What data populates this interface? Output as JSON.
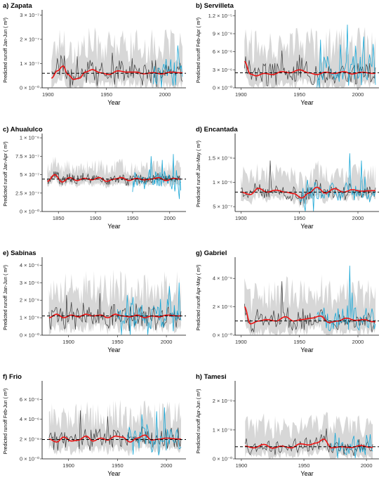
{
  "colors": {
    "band": "#c9c9c9",
    "predicted": "#3a3a3a",
    "observed": "#1aa7d6",
    "smooth": "#ee1111",
    "mean": "#000000"
  },
  "chart_data": [
    {
      "type": "line",
      "title": "a) Zapata",
      "xlabel": "Year",
      "ylabel": "Predicted runoff Jan-Jun ( m³)",
      "xlim": [
        1895,
        2018
      ],
      "xticks": [
        1900,
        1950,
        2000
      ],
      "xtick_labels": [
        "1900",
        "1950",
        "2000"
      ],
      "ylim": [
        0,
        3.1e-07
      ],
      "yticks": [
        0,
        1e-07,
        2e-07,
        3e-07
      ],
      "ytick_labels": [
        "0 × 10⁻⁰",
        "1 × 10⁻⁷",
        "2 × 10⁻⁷",
        "3 × 10⁻⁷"
      ],
      "mean": 6e-08,
      "series_years": [
        1903,
        2015
      ],
      "observed_years": [
        1990,
        2015
      ],
      "smooth_points": [
        [
          1903,
          4e-08
        ],
        [
          1908,
          7e-08
        ],
        [
          1913,
          9e-08
        ],
        [
          1917,
          5.5e-08
        ],
        [
          1922,
          3.5e-08
        ],
        [
          1927,
          4e-08
        ],
        [
          1932,
          6.5e-08
        ],
        [
          1938,
          7.5e-08
        ],
        [
          1945,
          6.2e-08
        ],
        [
          1952,
          5.5e-08
        ],
        [
          1960,
          7e-08
        ],
        [
          1967,
          6.5e-08
        ],
        [
          1975,
          6.5e-08
        ],
        [
          1982,
          5.8e-08
        ],
        [
          1990,
          6.3e-08
        ],
        [
          1997,
          5.7e-08
        ],
        [
          2005,
          6.5e-08
        ],
        [
          2013,
          6.2e-08
        ]
      ],
      "predicted_scale": 4.5e-08,
      "observed_scale": 5.5e-08,
      "band_scale": 9e-08,
      "spikes": [
        [
          2011,
          1.75e-07,
          "observed"
        ],
        [
          2008,
          1.05e-07,
          "observed"
        ],
        [
          1925,
          1.3e-07,
          "predicted"
        ],
        [
          1955,
          1.45e-07,
          "predicted"
        ]
      ]
    },
    {
      "type": "line",
      "title": "b) Servilleta",
      "xlabel": "Year",
      "ylabel": "Predicted runoff Feb-Apr ( m³)",
      "xlim": [
        1895,
        2018
      ],
      "xticks": [
        1900,
        1950,
        2000
      ],
      "xtick_labels": [
        "1900",
        "1950",
        "2000"
      ],
      "ylim": [
        0,
        1.25e-05
      ],
      "yticks": [
        0,
        3e-06,
        6e-06,
        9e-06,
        1.2e-05
      ],
      "ytick_labels": [
        "0 × 10⁻⁰",
        "3 × 10⁻⁶",
        "6 × 10⁻⁶",
        "9 × 10⁻⁶",
        "1.2 × 10⁻⁵"
      ],
      "mean": 2.5e-06,
      "series_years": [
        1903,
        2015
      ],
      "observed_years": [
        1965,
        2015
      ],
      "smooth_points": [
        [
          1903,
          4.4e-06
        ],
        [
          1908,
          2.3e-06
        ],
        [
          1913,
          2e-06
        ],
        [
          1920,
          2.4e-06
        ],
        [
          1927,
          2.2e-06
        ],
        [
          1935,
          2.7e-06
        ],
        [
          1942,
          2.5e-06
        ],
        [
          1950,
          3e-06
        ],
        [
          1958,
          2.5e-06
        ],
        [
          1965,
          2.2e-06
        ],
        [
          1972,
          2.6e-06
        ],
        [
          1980,
          2.4e-06
        ],
        [
          1988,
          2.7e-06
        ],
        [
          1995,
          2.3e-06
        ],
        [
          2003,
          2.6e-06
        ],
        [
          2013,
          2.4e-06
        ]
      ],
      "predicted_scale": 1.8e-06,
      "observed_scale": 2.6e-06,
      "band_scale": 3.8e-06,
      "spikes": [
        [
          1991,
          1.05e-05,
          "observed"
        ],
        [
          2005,
          8.5e-06,
          "observed"
        ],
        [
          1968,
          8e-06,
          "observed"
        ],
        [
          1985,
          7.2e-06,
          "observed"
        ],
        [
          1998,
          7e-06,
          "observed"
        ],
        [
          2013,
          7.3e-06,
          "observed"
        ],
        [
          1935,
          6.2e-06,
          "predicted"
        ],
        [
          1950,
          5.5e-06,
          "predicted"
        ]
      ]
    },
    {
      "type": "line",
      "title": "c) Ahualulco",
      "xlabel": "Year",
      "ylabel": "Predicted runoff Jan-Apr ( m³)",
      "xlim": [
        1828,
        2022
      ],
      "xticks": [
        1850,
        1900,
        1950,
        2000
      ],
      "xtick_labels": [
        "1850",
        "1900",
        "1950",
        "2000"
      ],
      "ylim": [
        0,
        1.02e-06
      ],
      "yticks": [
        0,
        2.5e-07,
        5e-07,
        7.5e-07,
        1e-06
      ],
      "ytick_labels": [
        "0 × 10⁻⁰",
        "2.5 × 10⁻⁷",
        "5 × 10⁻⁷",
        "7.5 × 10⁻⁷",
        "1 × 10⁻⁶"
      ],
      "mean": 4.4e-07,
      "series_years": [
        1835,
        2015
      ],
      "observed_years": [
        1950,
        2015
      ],
      "smooth_points": [
        [
          1835,
          4.1e-07
        ],
        [
          1845,
          5e-07
        ],
        [
          1855,
          4e-07
        ],
        [
          1865,
          4.6e-07
        ],
        [
          1875,
          4.2e-07
        ],
        [
          1885,
          4.5e-07
        ],
        [
          1895,
          4.3e-07
        ],
        [
          1905,
          4.6e-07
        ],
        [
          1915,
          4.1e-07
        ],
        [
          1925,
          4.4e-07
        ],
        [
          1935,
          4.6e-07
        ],
        [
          1945,
          4.2e-07
        ],
        [
          1955,
          4.5e-07
        ],
        [
          1965,
          4.3e-07
        ],
        [
          1975,
          4.4e-07
        ],
        [
          1985,
          4.6e-07
        ],
        [
          1995,
          4.2e-07
        ],
        [
          2005,
          4.5e-07
        ],
        [
          2013,
          4.4e-07
        ]
      ],
      "predicted_scale": 6e-08,
      "observed_scale": 1.3e-07,
      "band_scale": 1.3e-07,
      "spikes": [
        [
          1975,
          7.5e-07,
          "observed"
        ],
        [
          2005,
          7.8e-07,
          "observed"
        ],
        [
          1990,
          7e-07,
          "observed"
        ],
        [
          2013,
          1.7e-07,
          "observed"
        ]
      ]
    },
    {
      "type": "line",
      "title": "d) Encantada",
      "xlabel": "Year",
      "ylabel": "Predicted runoff Jan-May ( m³)",
      "xlim": [
        1895,
        2018
      ],
      "xticks": [
        1900,
        1950,
        2000
      ],
      "xtick_labels": [
        "1900",
        "1950",
        "2000"
      ],
      "ylim": [
        4e-07,
        1.95e-06
      ],
      "yticks": [
        5e-07,
        1e-06,
        1.5e-06
      ],
      "ytick_labels": [
        "5 × 10⁻⁷",
        "1 × 10⁻⁶",
        "1.5 × 10⁻⁶"
      ],
      "mean": 8e-07,
      "series_years": [
        1900,
        2015
      ],
      "observed_years": [
        1950,
        2015
      ],
      "smooth_points": [
        [
          1900,
          8e-07
        ],
        [
          1908,
          7.5e-07
        ],
        [
          1915,
          8.8e-07
        ],
        [
          1922,
          8e-07
        ],
        [
          1930,
          8.4e-07
        ],
        [
          1938,
          8e-07
        ],
        [
          1945,
          7.7e-07
        ],
        [
          1952,
          6.8e-07
        ],
        [
          1958,
          7.8e-07
        ],
        [
          1965,
          9e-07
        ],
        [
          1972,
          7.8e-07
        ],
        [
          1980,
          8.7e-07
        ],
        [
          1988,
          8e-07
        ],
        [
          1995,
          8.5e-07
        ],
        [
          2003,
          8.2e-07
        ],
        [
          2013,
          8.3e-07
        ]
      ],
      "predicted_scale": 1.4e-07,
      "observed_scale": 2.2e-07,
      "band_scale": 2.8e-07,
      "spikes": [
        [
          1993,
          1.6e-06,
          "observed"
        ],
        [
          2003,
          1.45e-06,
          "observed"
        ],
        [
          1955,
          2.7e-07,
          "observed"
        ],
        [
          1962,
          3e-07,
          "observed"
        ],
        [
          1925,
          1.45e-06,
          "predicted"
        ]
      ]
    },
    {
      "type": "line",
      "title": "e) Sabinas",
      "xlabel": "Year",
      "ylabel": "Predicted runoff Jan-Jun ( m³)",
      "xlim": [
        1873,
        2020
      ],
      "xticks": [
        1900,
        1950,
        2000
      ],
      "xtick_labels": [
        "1900",
        "1950",
        "2000"
      ],
      "ylim": [
        0,
        4.3e-06
      ],
      "yticks": [
        0,
        1e-06,
        2e-06,
        3e-06,
        4e-06
      ],
      "ytick_labels": [
        "0 × 10⁻⁰",
        "1 × 10⁻⁶",
        "2 × 10⁻⁶",
        "3 × 10⁻⁶",
        "4 × 10⁻⁶"
      ],
      "mean": 1.1e-06,
      "series_years": [
        1880,
        2015
      ],
      "observed_years": [
        1950,
        2015
      ],
      "smooth_points": [
        [
          1880,
          1e-06
        ],
        [
          1888,
          1.2e-06
        ],
        [
          1895,
          1e-06
        ],
        [
          1903,
          1.15e-06
        ],
        [
          1910,
          1.05e-06
        ],
        [
          1918,
          1.2e-06
        ],
        [
          1925,
          1.1e-06
        ],
        [
          1933,
          1.15e-06
        ],
        [
          1940,
          1e-06
        ],
        [
          1948,
          1.2e-06
        ],
        [
          1955,
          1.1e-06
        ],
        [
          1963,
          1.05e-06
        ],
        [
          1970,
          1.15e-06
        ],
        [
          1978,
          1e-06
        ],
        [
          1985,
          1.1e-06
        ],
        [
          1993,
          1.05e-06
        ],
        [
          2000,
          1.15e-06
        ],
        [
          2013,
          1.1e-06
        ]
      ],
      "predicted_scale": 6.5e-07,
      "observed_scale": 8e-07,
      "band_scale": 1.3e-06,
      "spikes": [
        [
          2013,
          3e-06,
          "observed"
        ],
        [
          2003,
          2.8e-06,
          "observed"
        ],
        [
          1960,
          2.3e-06,
          "observed"
        ],
        [
          1898,
          2.3e-06,
          "predicted"
        ],
        [
          1932,
          2.4e-06,
          "predicted"
        ]
      ]
    },
    {
      "type": "line",
      "title": "g) Gabriel",
      "xlabel": "Year",
      "ylabel": "Predicted runoff Apr-May ( m³)",
      "xlim": [
        1895,
        2018
      ],
      "xticks": [
        1900,
        1950,
        2000
      ],
      "xtick_labels": [
        "1900",
        "1950",
        "2000"
      ],
      "ylim": [
        0,
        5.3e-06
      ],
      "yticks": [
        0,
        2e-06,
        4e-06
      ],
      "ytick_labels": [
        "0 × 10⁻⁰",
        "2 × 10⁻⁶",
        "4 × 10⁻⁶"
      ],
      "mean": 1e-06,
      "series_years": [
        1903,
        2015
      ],
      "observed_years": [
        1965,
        2015
      ],
      "smooth_points": [
        [
          1903,
          2e-06
        ],
        [
          1908,
          8e-07
        ],
        [
          1915,
          1e-06
        ],
        [
          1922,
          1.1e-06
        ],
        [
          1930,
          1e-06
        ],
        [
          1938,
          1.3e-06
        ],
        [
          1945,
          1e-06
        ],
        [
          1952,
          1.1e-06
        ],
        [
          1960,
          1.2e-06
        ],
        [
          1968,
          1.35e-06
        ],
        [
          1975,
          9e-07
        ],
        [
          1983,
          1e-06
        ],
        [
          1990,
          1.2e-06
        ],
        [
          1998,
          1.05e-06
        ],
        [
          2005,
          1.1e-06
        ],
        [
          2013,
          9.5e-07
        ]
      ],
      "predicted_scale": 7e-07,
      "observed_scale": 8e-07,
      "band_scale": 1.5e-06,
      "spikes": [
        [
          1993,
          4.9e-06,
          "observed"
        ],
        [
          1995,
          3e-06,
          "observed"
        ],
        [
          1935,
          3.8e-06,
          "predicted"
        ]
      ]
    },
    {
      "type": "line",
      "title": "f) Frio",
      "xlabel": "Year",
      "ylabel": "Predicted runoff Feb-Jun ( m³)",
      "xlim": [
        1873,
        2020
      ],
      "xticks": [
        1900,
        1950,
        2000
      ],
      "xtick_labels": [
        "1900",
        "1950",
        "2000"
      ],
      "ylim": [
        0,
        7.6e-06
      ],
      "yticks": [
        0,
        2e-06,
        4e-06,
        6e-06
      ],
      "ytick_labels": [
        "0 × 10⁻⁰",
        "2 × 10⁻⁶",
        "4 × 10⁻⁶",
        "6 × 10⁻⁶"
      ],
      "mean": 1.95e-06,
      "series_years": [
        1880,
        2015
      ],
      "observed_years": [
        1960,
        2015
      ],
      "smooth_points": [
        [
          1880,
          2e-06
        ],
        [
          1888,
          1.7e-06
        ],
        [
          1895,
          2.2e-06
        ],
        [
          1903,
          1.8e-06
        ],
        [
          1910,
          1.9e-06
        ],
        [
          1918,
          2.3e-06
        ],
        [
          1925,
          1.8e-06
        ],
        [
          1933,
          2.1e-06
        ],
        [
          1940,
          1.9e-06
        ],
        [
          1948,
          2.3e-06
        ],
        [
          1955,
          2.2e-06
        ],
        [
          1963,
          1.7e-06
        ],
        [
          1970,
          2.1e-06
        ],
        [
          1978,
          2.4e-06
        ],
        [
          1985,
          1.9e-06
        ],
        [
          1993,
          2e-06
        ],
        [
          2000,
          2.1e-06
        ],
        [
          2013,
          2e-06
        ]
      ],
      "predicted_scale": 9e-07,
      "observed_scale": 1.2e-06,
      "band_scale": 1.9e-06,
      "spikes": [
        [
          1998,
          5.2e-06,
          "observed"
        ],
        [
          1990,
          4.8e-06,
          "observed"
        ],
        [
          1975,
          4.5e-06,
          "observed"
        ],
        [
          1912,
          4.9e-06,
          "predicted"
        ],
        [
          1940,
          4.3e-06,
          "predicted"
        ]
      ]
    },
    {
      "type": "line",
      "title": "h) Tamesi",
      "xlabel": "Year",
      "ylabel": "Predicted runoff Apr-Jun ( m³)",
      "xlim": [
        1895,
        2010
      ],
      "xticks": [
        1900,
        1950,
        2000
      ],
      "xtick_labels": [
        "1900",
        "1950",
        "2000"
      ],
      "ylim": [
        0,
        2.6e-09
      ],
      "yticks": [
        0,
        1e-09,
        2e-09
      ],
      "ytick_labels": [
        "0 × 10⁻⁰",
        "1 × 10⁻⁹",
        "2 × 10⁻⁹"
      ],
      "mean": 4.2e-10,
      "series_years": [
        1903,
        2005
      ],
      "observed_years": [
        1972,
        2005
      ],
      "smooth_points": [
        [
          1903,
          4.4e-10
        ],
        [
          1910,
          3.8e-10
        ],
        [
          1918,
          5e-10
        ],
        [
          1925,
          3.7e-10
        ],
        [
          1932,
          4.4e-10
        ],
        [
          1940,
          3.8e-10
        ],
        [
          1947,
          5.2e-10
        ],
        [
          1954,
          4.8e-10
        ],
        [
          1960,
          5.5e-10
        ],
        [
          1966,
          6.8e-10
        ],
        [
          1972,
          3.8e-10
        ],
        [
          1980,
          4.2e-10
        ],
        [
          1988,
          3.9e-10
        ],
        [
          1995,
          4.6e-10
        ],
        [
          2003,
          4e-10
        ]
      ],
      "predicted_scale": 2.5e-10,
      "observed_scale": 3e-10,
      "band_scale": 5.5e-10,
      "spikes": [
        [
          1968,
          1.05e-09,
          "predicted"
        ],
        [
          1975,
          9e-10,
          "observed"
        ],
        [
          2003,
          8.5e-10,
          "observed"
        ]
      ]
    }
  ]
}
